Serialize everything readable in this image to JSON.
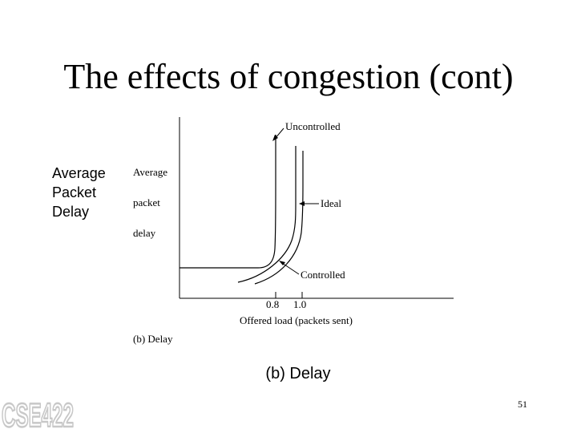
{
  "slide": {
    "title": "The effects of congestion (cont)",
    "side_label": [
      "Average",
      "Packet",
      "Delay"
    ],
    "caption": "(b) Delay",
    "page_number": "51",
    "logo_text": "CSE422"
  },
  "chart_data": {
    "type": "line",
    "title": "",
    "ylabel_lines": [
      "Average",
      "packet",
      "delay"
    ],
    "xlabel": "Offered load (packets sent)",
    "x_ticks": [
      {
        "value": 0.8,
        "label": "0.8"
      },
      {
        "value": 1.0,
        "label": "1.0"
      }
    ],
    "xlim": [
      0,
      2
    ],
    "ylim": [
      0,
      1
    ],
    "grid": false,
    "figure_caption": "(b) Delay",
    "series": [
      {
        "name": "Uncontrolled",
        "points": [
          [
            0,
            0.105
          ],
          [
            0.55,
            0.11
          ],
          [
            0.7,
            0.13
          ],
          [
            0.76,
            0.22
          ],
          [
            0.78,
            0.42
          ],
          [
            0.785,
            0.62
          ],
          [
            0.79,
            0.85
          ],
          [
            0.79,
            1.0
          ]
        ]
      },
      {
        "name": "Ideal",
        "points": [
          [
            0,
            0.17
          ],
          [
            0.6,
            0.17
          ],
          [
            0.62,
            0.17
          ],
          [
            0.63,
            1.0
          ]
        ]
      },
      {
        "name": "Controlled",
        "points": [
          [
            0.45,
            0.0
          ],
          [
            0.65,
            0.08
          ],
          [
            0.85,
            0.25
          ],
          [
            0.9,
            0.5
          ],
          [
            0.94,
            1.0
          ]
        ]
      }
    ],
    "annotations": [
      {
        "text": "Uncontrolled"
      },
      {
        "text": "Ideal"
      },
      {
        "text": "Controlled"
      }
    ]
  }
}
